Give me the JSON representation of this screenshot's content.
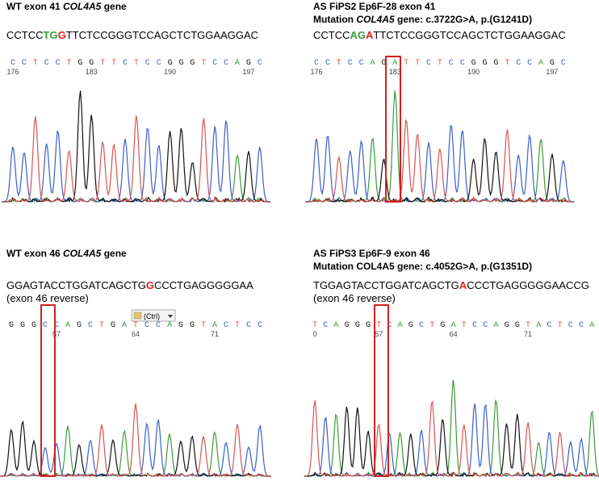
{
  "panels": [
    {
      "title": [
        "WT exon 41 ",
        "COL4A5",
        " gene"
      ],
      "sequence": [
        {
          "text": "CCTCC",
          "color": "#000000"
        },
        {
          "text": "TG",
          "color": "#3a9a3a"
        },
        {
          "text": "G",
          "color": "#e02020"
        },
        {
          "text": "TTCTCCGGGTCCAGCTCTGGAAGGAC",
          "color": "#000000"
        }
      ],
      "calls": [
        "C",
        "C",
        "T",
        "C",
        "C",
        "T",
        "G",
        "G",
        "T",
        "T",
        "C",
        "T",
        "C",
        "C",
        "G",
        "G",
        "G",
        "T",
        "C",
        "C",
        "A",
        "G",
        "C"
      ],
      "positions": [
        "176",
        "183",
        "190",
        "197"
      ]
    },
    {
      "title": [
        "AS FiPS2 Ep6F-28 exon 41"
      ],
      "subtitle": [
        "Mutation ",
        "COL4A5",
        " gene: c.3722G>A, p.(G1241D)"
      ],
      "sequence": [
        {
          "text": "CCTCC",
          "color": "#000000"
        },
        {
          "text": "AG",
          "color": "#3a9a3a"
        },
        {
          "text": "A",
          "color": "#e02020"
        },
        {
          "text": "TTCTCCGGGTCCAGCTCTGGAAGGAC",
          "color": "#000000"
        }
      ],
      "calls": [
        "C",
        "C",
        "T",
        "C",
        "C",
        "A",
        "G",
        "A",
        "T",
        "T",
        "C",
        "T",
        "C",
        "C",
        "G",
        "G",
        "G",
        "T",
        "C",
        "C",
        "A",
        "G",
        "C"
      ],
      "positions": [
        "176",
        "183",
        "190",
        "197"
      ]
    },
    {
      "title": [
        "WT exon 46 ",
        "COL4A5",
        " gene"
      ],
      "sequence": [
        {
          "text": "GGAGTACCTGGATCAGCTG",
          "color": "#000000"
        },
        {
          "text": "G",
          "color": "#e02020"
        },
        {
          "text": "CCCTGAGGGGGAA",
          "color": "#000000"
        }
      ],
      "note": "(exon 46 reverse)",
      "popup": "(Ctrl)",
      "calls": [
        "G",
        "G",
        "G",
        "C",
        "C",
        "A",
        "G",
        "C",
        "T",
        "G",
        "A",
        "T",
        "C",
        "C",
        "A",
        "G",
        "G",
        "T",
        "A",
        "C",
        "T",
        "C",
        "C"
      ],
      "positions": [
        "57",
        "64",
        "71"
      ]
    },
    {
      "title": [
        "AS FiPS3 Ep6F-9 exon 46"
      ],
      "subtitle": [
        "Mutation COL4A5 gene: c.4052G>A, p.(G1351D)"
      ],
      "sequence": [
        {
          "text": "TGGAGTACCTGGATCAGCTG",
          "color": "#000000"
        },
        {
          "text": "A",
          "color": "#e02020"
        },
        {
          "text": "CCCTGAGGGGGAACCG",
          "color": "#000000"
        }
      ],
      "note": "(exon 46 reverse)",
      "calls": [
        "T",
        "C",
        "A",
        "G",
        "G",
        "G",
        "T",
        "C",
        "A",
        "G",
        "C",
        "T",
        "G",
        "A",
        "T",
        "C",
        "C",
        "A",
        "G",
        "G",
        "T",
        "A",
        "C",
        "T",
        "C",
        "C",
        "A"
      ],
      "positions": [
        "0",
        "57",
        "64",
        "71"
      ]
    }
  ]
}
